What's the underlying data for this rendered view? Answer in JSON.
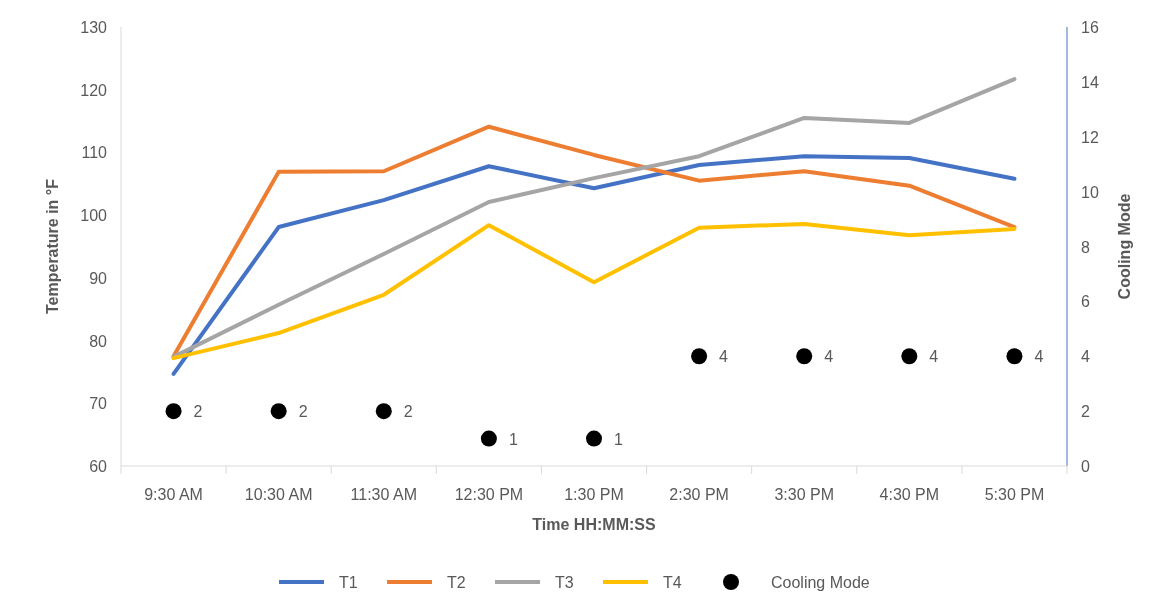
{
  "chart_data": {
    "type": "line",
    "xlabel": "Time HH:MM:SS",
    "ylabel": "Temperature in °F",
    "y2label": "Cooling Mode",
    "categories": [
      "9:30 AM",
      "10:30 AM",
      "11:30 AM",
      "12:30 PM",
      "1:30 PM",
      "2:30 PM",
      "3:30 PM",
      "4:30 PM",
      "5:30 PM"
    ],
    "series": [
      {
        "name": "T1",
        "color": "#4472c4",
        "values": [
          74.7,
          98.1,
          102.4,
          107.8,
          104.3,
          108,
          109.4,
          109.1,
          105.8
        ]
      },
      {
        "name": "T2",
        "color": "#ed7d31",
        "values": [
          77.5,
          106.9,
          107,
          114.1,
          109.6,
          105.5,
          107,
          104.7,
          98.1
        ]
      },
      {
        "name": "T3",
        "color": "#a5a5a5",
        "values": [
          77.4,
          85.7,
          93.8,
          102.1,
          105.9,
          109.4,
          115.5,
          114.7,
          121.7
        ]
      },
      {
        "name": "T4",
        "color": "#ffc000",
        "values": [
          77.2,
          81.2,
          87.3,
          98.4,
          89.3,
          98,
          98.6,
          96.8,
          97.8
        ]
      },
      {
        "name": "Cooling Mode",
        "type": "scatter",
        "axis": "y2",
        "marker": "circle",
        "color": "#000000",
        "values": [
          2,
          2,
          2,
          1,
          1,
          4,
          4,
          4,
          4
        ],
        "value_labels": [
          "2",
          "2",
          "2",
          "1",
          "1",
          "4",
          "4",
          "4",
          "4"
        ]
      }
    ],
    "ylim": [
      60,
      130
    ],
    "yticks": [
      60,
      70,
      80,
      90,
      100,
      110,
      120,
      130
    ],
    "y2lim": [
      0,
      16
    ],
    "y2ticks": [
      0,
      2,
      4,
      6,
      8,
      10,
      12,
      14,
      16
    ],
    "grid": false,
    "legend": "bottom",
    "marker": "none",
    "line_style": "solid"
  }
}
